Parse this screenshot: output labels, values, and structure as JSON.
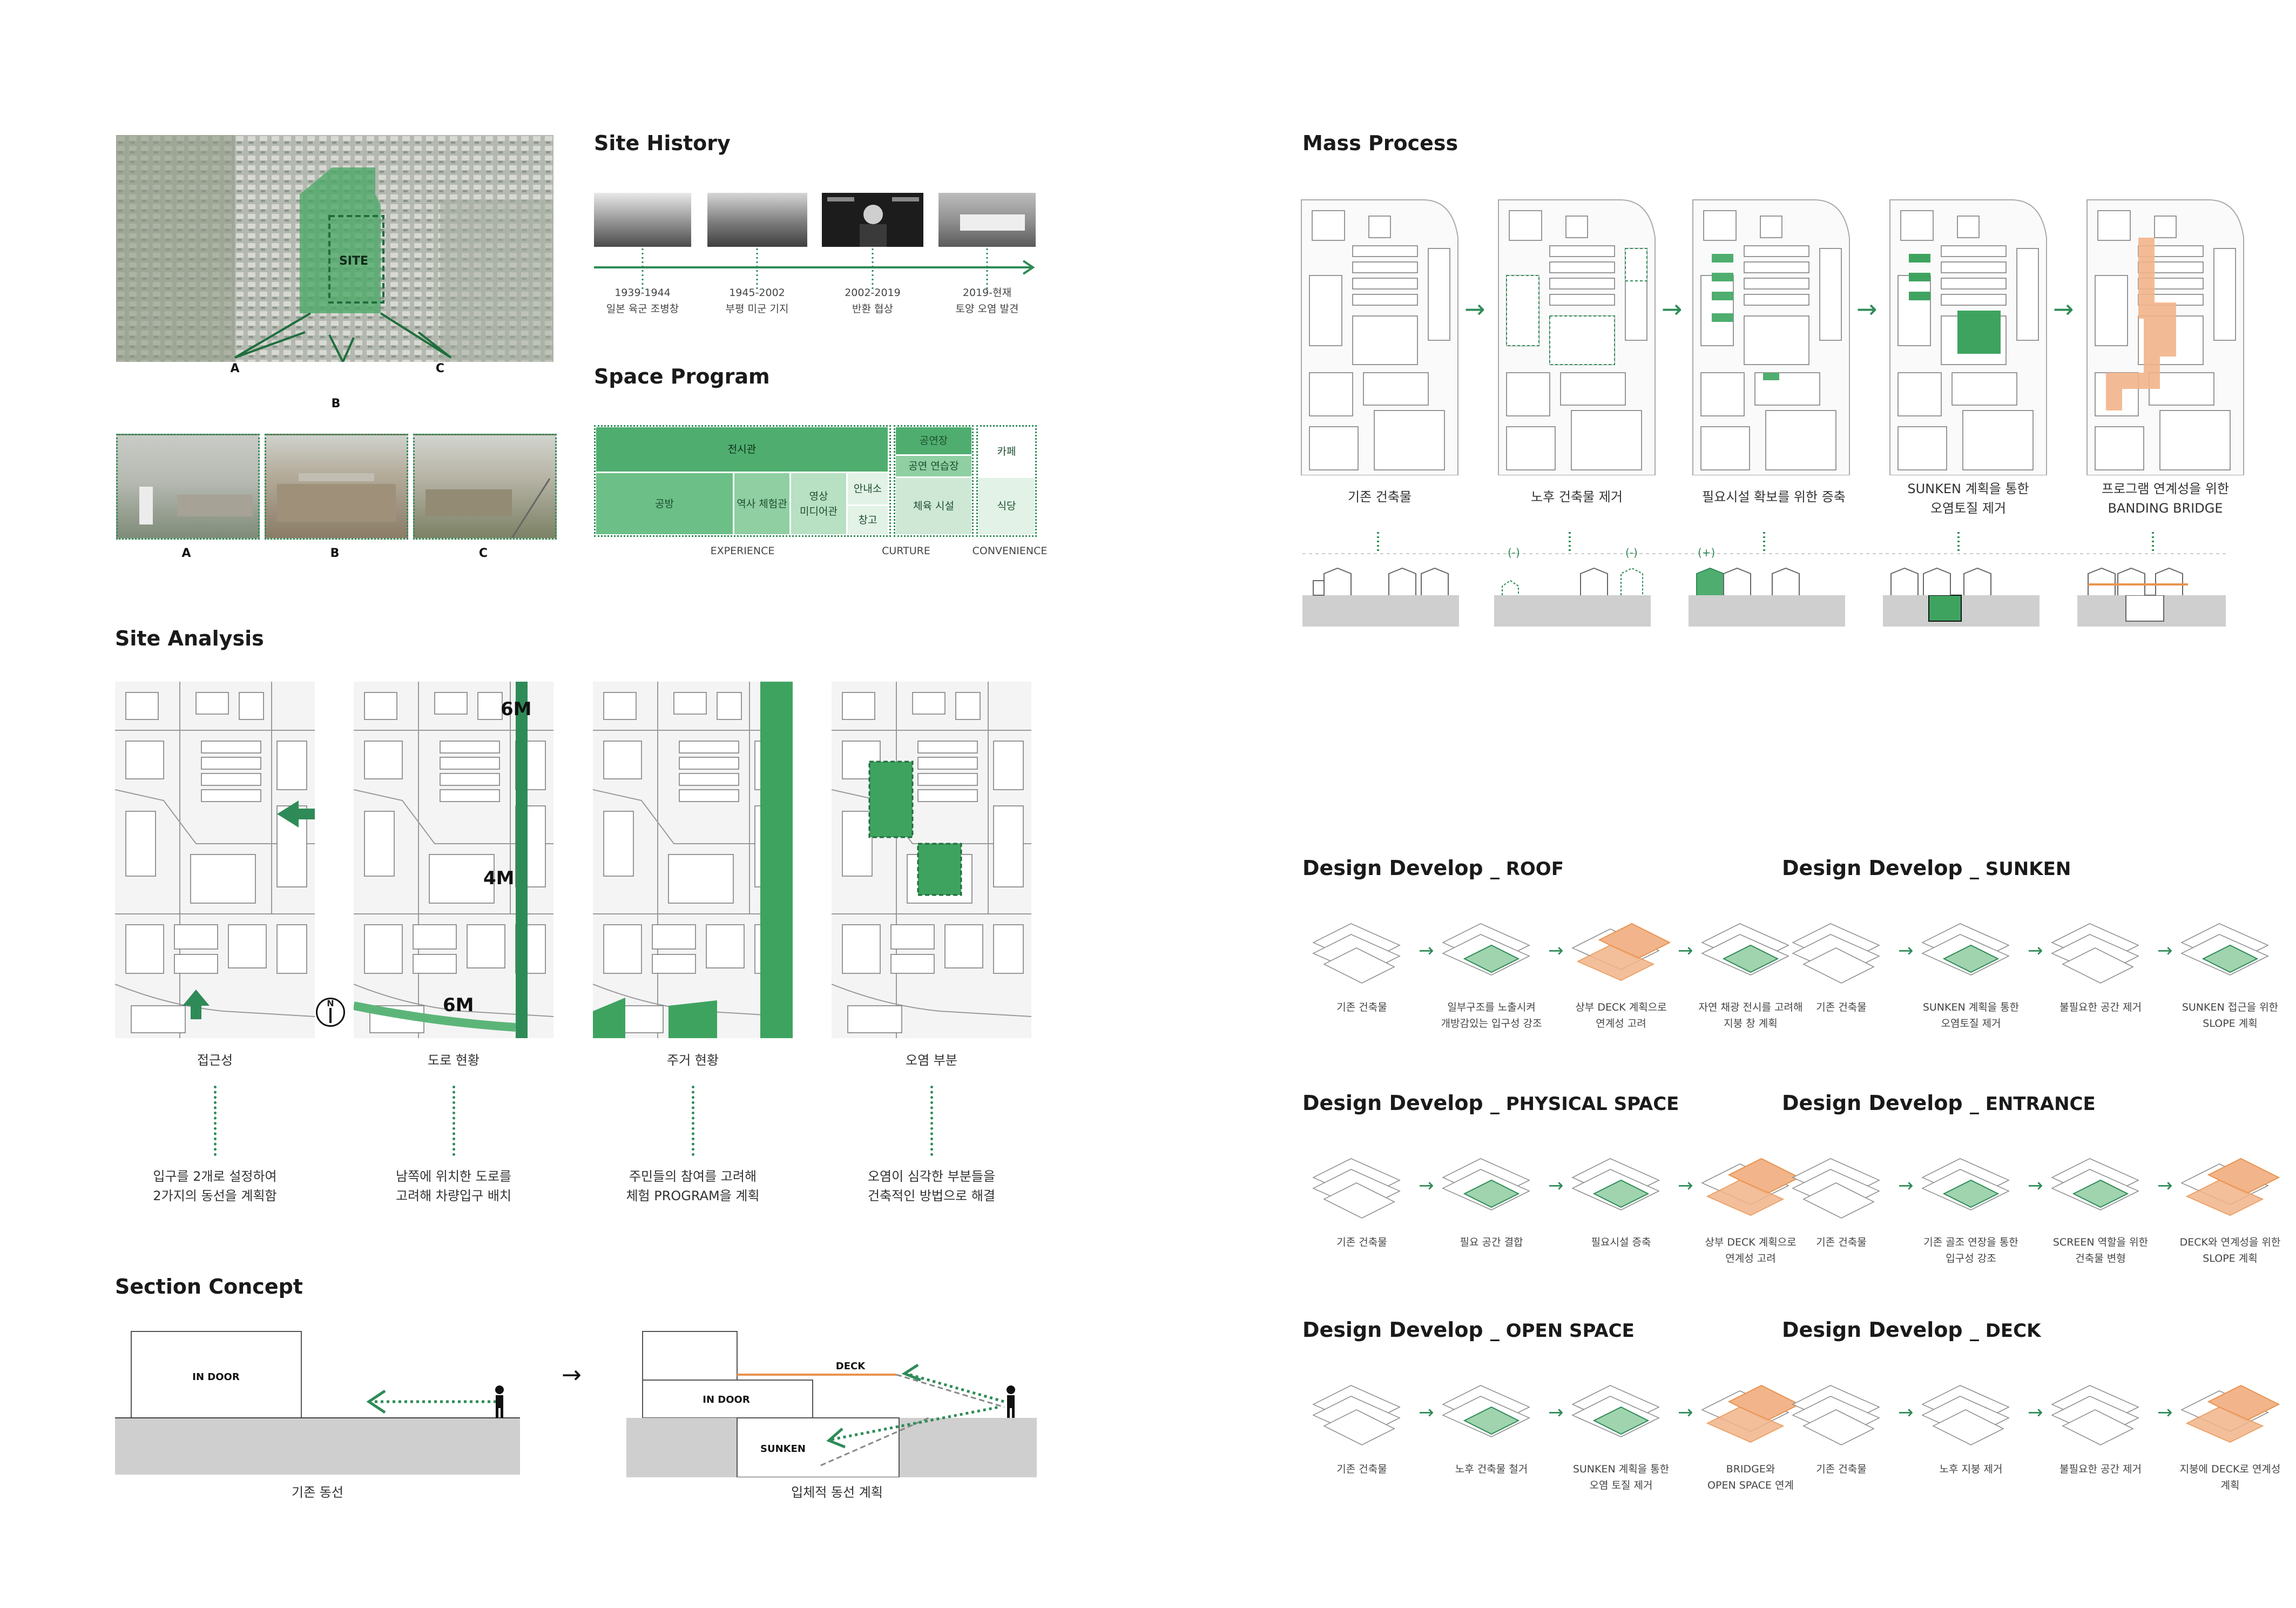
{
  "site_photo": {
    "site_label": "SITE",
    "markers": [
      "A",
      "B",
      "C"
    ]
  },
  "photos": [
    {
      "label": "A"
    },
    {
      "label": "B"
    },
    {
      "label": "C"
    }
  ],
  "site_history": {
    "title": "Site History",
    "events": [
      {
        "years": "1939-1944",
        "desc": "일본 육군 조병창"
      },
      {
        "years": "1945-2002",
        "desc": "부평 미군 기지"
      },
      {
        "years": "2002-2019",
        "desc": "반환 협상"
      },
      {
        "years": "2019-현재",
        "desc": "토양 오염 발견"
      }
    ]
  },
  "space_program": {
    "title": "Space Program",
    "blocks": {
      "exhibition": "전시관",
      "workshop": "공방",
      "history": "역사 체험관",
      "video": "영상\n미디어관",
      "info": "안내소",
      "storage": "창고",
      "performance": "공연장",
      "rehearsal": "공연 연습장",
      "gym": "체육 시설",
      "cafe": "카페",
      "restaurant": "식당"
    },
    "categories": [
      "EXPERIENCE",
      "CURTURE",
      "CONVENIENCE"
    ]
  },
  "site_analysis": {
    "title": "Site Analysis",
    "panels": [
      {
        "title": "접근성",
        "desc": "입구를 2개로 설정하여\n2가지의 동선을 계획함"
      },
      {
        "title": "도로 현황",
        "desc": "남쪽에 위치한 도로를\n고려해 차량입구 배치"
      },
      {
        "title": "주거 현황",
        "desc": "주민들의 참여를 고려해\n체험 PROGRAM을 계획"
      },
      {
        "title": "오염 부분",
        "desc": "오염이 심각한 부분들을\n건축적인 방법으로 해결"
      }
    ],
    "road_labels": [
      "6M",
      "4M",
      "6M"
    ],
    "compass": "N"
  },
  "section_concept": {
    "title": "Section Concept",
    "left": {
      "indoor": "IN DOOR",
      "caption": "기존 동선"
    },
    "right": {
      "indoor": "IN DOOR",
      "deck": "DECK",
      "sunken": "SUNKEN",
      "caption": "입체적 동선 계획"
    }
  },
  "mass_process": {
    "title": "Mass Process",
    "steps": [
      {
        "caption": "기존 건축물"
      },
      {
        "caption": "노후 건축물 제거"
      },
      {
        "caption": "필요시설 확보를 위한 증축"
      },
      {
        "caption": "SUNKEN 계획을 통한\n오염토질 제거"
      },
      {
        "caption": "프로그램 연계성을 위한\nBANDING BRIDGE"
      }
    ],
    "section_marks": [
      "(-)",
      "(-)",
      "(+)"
    ]
  },
  "design_develop": [
    {
      "title": "Design Develop",
      "subtitle": "_ ROOF",
      "captions": [
        "기존 건축물",
        "일부구조를 노출시켜\n개방감있는 입구성 강조",
        "상부 DECK 계획으로\n연계성 고려",
        "자연 채광 전시를 고려해\n지붕 창 계획"
      ]
    },
    {
      "title": "Design Develop",
      "subtitle": "_ SUNKEN",
      "captions": [
        "기존 건축물",
        "SUNKEN 계획을 통한\n오염토질 제거",
        "불필요한 공간 제거",
        "SUNKEN 접근을 위한\nSLOPE 계획"
      ]
    },
    {
      "title": "Design Develop",
      "subtitle": "_ PHYSICAL SPACE",
      "captions": [
        "기존 건축물",
        "필요 공간 결합",
        "필요시설 증축",
        "상부 DECK 계획으로\n연계성 고려"
      ]
    },
    {
      "title": "Design Develop",
      "subtitle": "_ ENTRANCE",
      "captions": [
        "기존 건축물",
        "기존 골조 연장을 통한\n입구성 강조",
        "SCREEN 역할을 위한\n건축물 변형",
        "DECK와 연계성을 위한\nSLOPE 계획"
      ]
    },
    {
      "title": "Design Develop",
      "subtitle": "_ OPEN SPACE",
      "captions": [
        "기존 건축물",
        "노후 건축물 철거",
        "SUNKEN 계획을 통한\n오염 토질 제거",
        "BRIDGE와\nOPEN SPACE 연계"
      ]
    },
    {
      "title": "Design Develop",
      "subtitle": "_ DECK",
      "captions": [
        "기존 건축물",
        "노후 지붕 제거",
        "불필요한 공간 제거",
        "지붕에 DECK로 연계성\n계획"
      ]
    }
  ],
  "colors": {
    "accent": "#2e8b57",
    "fill": "#5cb578",
    "light": "#cfe8d6",
    "orange": "#f2b48a",
    "ground": "#cfcfcf"
  }
}
